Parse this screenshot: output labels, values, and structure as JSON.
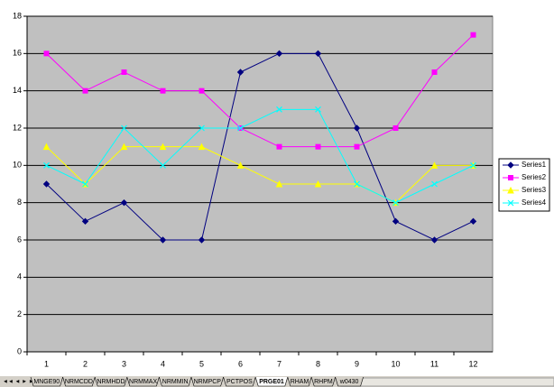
{
  "chart_data": {
    "type": "line",
    "categories": [
      "1",
      "2",
      "3",
      "4",
      "5",
      "6",
      "7",
      "8",
      "9",
      "10",
      "11",
      "12"
    ],
    "series": [
      {
        "name": "Series1",
        "color": "#000080",
        "marker": "diamond",
        "values": [
          9,
          7,
          8,
          6,
          6,
          15,
          16,
          16,
          12,
          7,
          6,
          7
        ]
      },
      {
        "name": "Series2",
        "color": "#ff00ff",
        "marker": "square",
        "values": [
          16,
          14,
          15,
          14,
          14,
          12,
          11,
          11,
          11,
          12,
          15,
          17
        ]
      },
      {
        "name": "Series3",
        "color": "#ffff00",
        "marker": "triangle",
        "values": [
          11,
          9,
          11,
          11,
          11,
          10,
          9,
          9,
          9,
          8,
          10,
          10
        ]
      },
      {
        "name": "Series4",
        "color": "#00ffff",
        "marker": "x",
        "values": [
          10,
          9,
          12,
          10,
          12,
          12,
          13,
          13,
          9,
          8,
          9,
          10
        ]
      }
    ],
    "ylim": [
      0,
      18
    ],
    "yticks": [
      0,
      2,
      4,
      6,
      8,
      10,
      12,
      14,
      16,
      18
    ],
    "grid": true,
    "legend": "right"
  },
  "sheet_tabs": {
    "tabs": [
      "MNGE90",
      "NRMCDD",
      "NRMHDD",
      "NRMMAX",
      "NRMMIN",
      "NRMPCP",
      "PCTPOS",
      "PRGE01",
      "RHAM",
      "RHPM",
      "w0430"
    ],
    "active": 7
  }
}
